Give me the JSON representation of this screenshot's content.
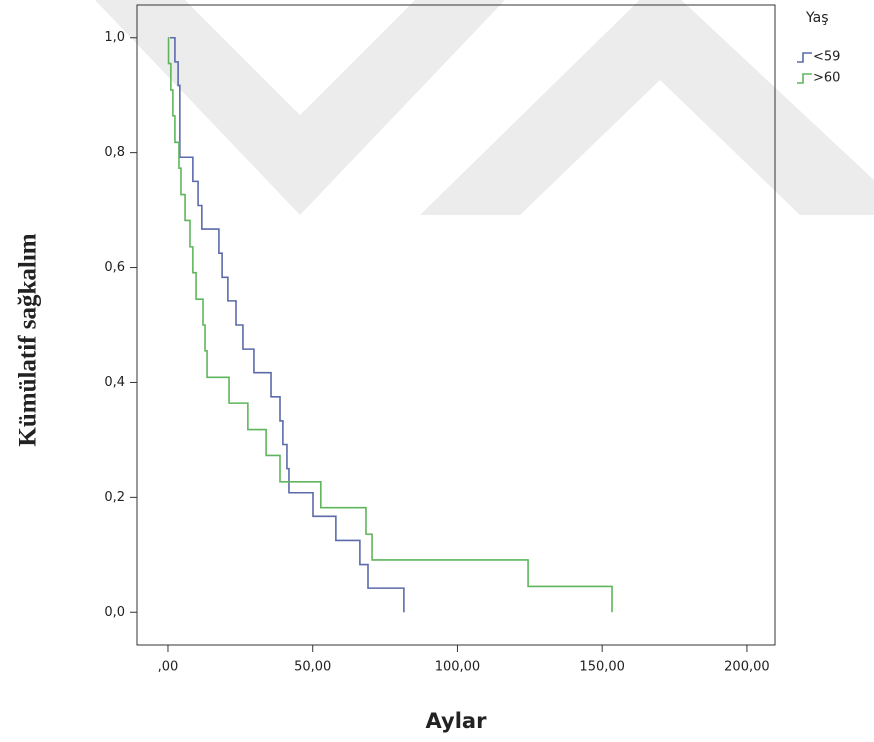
{
  "chart_data": {
    "type": "step",
    "drawstyle": "steps-post",
    "ylabel": "Kümülatif sağkalım",
    "xlabel": "Aylar",
    "legend_title": "Yaş",
    "legend": "top-right-outside",
    "xlim": [
      -10.7,
      209.7
    ],
    "ylim": [
      -0.057,
      1.057
    ],
    "xticks": [
      {
        "value": 0,
        "label": ",00"
      },
      {
        "value": 50,
        "label": "50,00"
      },
      {
        "value": 100,
        "label": "100,00"
      },
      {
        "value": 150,
        "label": "150,00"
      },
      {
        "value": 200,
        "label": "200,00"
      }
    ],
    "yticks": [
      {
        "value": 0,
        "label": "0,0"
      },
      {
        "value": 0.2,
        "label": "0,2"
      },
      {
        "value": 0.4,
        "label": "0,4"
      },
      {
        "value": 0.6,
        "label": "0,6"
      },
      {
        "value": 0.8,
        "label": "0,8"
      },
      {
        "value": 1,
        "label": "1,0"
      }
    ],
    "series": [
      {
        "name": "<59",
        "color": "#5b6aaa",
        "x": [
          0.7,
          2.4,
          3.5,
          4.1,
          8.6,
          10.4,
          11.7,
          17.6,
          18.7,
          20.7,
          23.5,
          25.9,
          29.7,
          35.6,
          38.7,
          39.7,
          41.1,
          41.8,
          50.1,
          58,
          66.3,
          69.1,
          81.5
        ],
        "values": [
          1.0,
          0.958,
          0.917,
          0.792,
          0.75,
          0.708,
          0.667,
          0.625,
          0.583,
          0.542,
          0.5,
          0.458,
          0.417,
          0.375,
          0.333,
          0.292,
          0.25,
          0.208,
          0.167,
          0.125,
          0.083,
          0.042,
          0
        ]
      },
      {
        "name": ">60",
        "color": "#5fb55c",
        "x": [
          0,
          0.2,
          1.0,
          1.7,
          2.4,
          3.8,
          4.5,
          5.9,
          7.6,
          8.6,
          9.7,
          12.1,
          12.8,
          13.5,
          21.1,
          27.6,
          33.9,
          38.7,
          52.8,
          68.4,
          70.5,
          124.4,
          153.4
        ],
        "values": [
          1.0,
          0.955,
          0.909,
          0.864,
          0.818,
          0.773,
          0.727,
          0.682,
          0.636,
          0.591,
          0.545,
          0.5,
          0.455,
          0.409,
          0.364,
          0.318,
          0.273,
          0.227,
          0.182,
          0.136,
          0.091,
          0.045,
          0
        ]
      }
    ]
  }
}
